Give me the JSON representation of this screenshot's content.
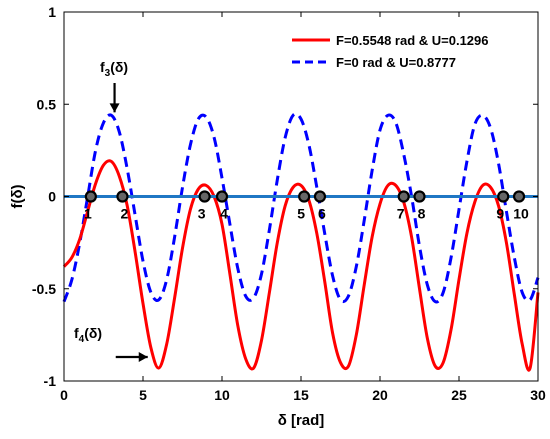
{
  "chart_data": {
    "type": "line",
    "xlabel": "δ [rad]",
    "ylabel": "f(δ)",
    "xlim": [
      0,
      30
    ],
    "ylim": [
      -1,
      1
    ],
    "xticks": [
      "0",
      "5",
      "10",
      "15",
      "20",
      "25",
      "30"
    ],
    "yticks": [
      "-1",
      "-0.5",
      "0",
      "0.5",
      "1"
    ],
    "grid": false,
    "legend_position": "top-right",
    "series": [
      {
        "name": "F=0.5548 rad & U=0.1296",
        "color": "#ff0000",
        "style": "solid",
        "x": [
          0,
          0.5,
          1.0,
          1.5,
          2.0,
          2.5,
          3.0,
          3.5,
          4.0,
          4.5,
          5.0,
          5.5,
          6.0,
          6.5,
          7.0,
          7.5,
          8.0,
          8.5,
          9.0,
          9.5,
          10.0,
          10.5,
          11.0,
          11.5,
          12.0,
          12.5,
          13.0,
          13.5,
          14.0,
          14.5,
          15.0,
          15.5,
          16.0,
          16.5,
          17.0,
          17.5,
          18.0,
          18.5,
          19.0,
          19.5,
          20.0,
          20.5,
          21.0,
          21.5,
          22.0,
          22.5,
          23.0,
          23.5,
          24.0,
          24.5,
          25.0,
          25.5,
          26.0,
          26.5,
          27.0,
          27.5,
          28.0,
          28.5,
          29.0,
          29.5,
          30.0
        ],
        "y": [
          -0.38,
          -0.33,
          -0.23,
          -0.08,
          0.07,
          0.17,
          0.19,
          0.11,
          -0.05,
          -0.3,
          -0.58,
          -0.82,
          -0.93,
          -0.8,
          -0.55,
          -0.28,
          -0.07,
          0.04,
          0.06,
          0.0,
          -0.15,
          -0.42,
          -0.7,
          -0.88,
          -0.93,
          -0.78,
          -0.52,
          -0.25,
          -0.05,
          0.05,
          0.06,
          -0.02,
          -0.2,
          -0.46,
          -0.74,
          -0.9,
          -0.92,
          -0.75,
          -0.48,
          -0.22,
          -0.04,
          0.06,
          0.06,
          -0.03,
          -0.22,
          -0.5,
          -0.77,
          -0.92,
          -0.9,
          -0.72,
          -0.45,
          -0.2,
          -0.03,
          0.06,
          0.05,
          -0.05,
          -0.25,
          -0.53,
          -0.8,
          -0.93,
          -0.52
        ]
      },
      {
        "name": "F=0 rad & U=0.8777",
        "color": "#0000ff",
        "style": "dashed",
        "x": [
          0,
          0.5,
          1.0,
          1.5,
          2.0,
          2.5,
          3.0,
          3.5,
          4.0,
          4.5,
          5.0,
          5.5,
          6.0,
          6.5,
          7.0,
          7.5,
          8.0,
          8.5,
          9.0,
          9.5,
          10.0,
          10.5,
          11.0,
          11.5,
          12.0,
          12.5,
          13.0,
          13.5,
          14.0,
          14.5,
          15.0,
          15.5,
          16.0,
          16.5,
          17.0,
          17.5,
          18.0,
          18.5,
          19.0,
          19.5,
          20.0,
          20.5,
          21.0,
          21.5,
          22.0,
          22.5,
          23.0,
          23.5,
          24.0,
          24.5,
          25.0,
          25.5,
          26.0,
          26.5,
          27.0,
          27.5,
          28.0,
          28.5,
          29.0,
          29.5,
          30.0
        ],
        "y": [
          -0.57,
          -0.45,
          -0.25,
          0.0,
          0.25,
          0.4,
          0.44,
          0.35,
          0.15,
          -0.1,
          -0.35,
          -0.52,
          -0.56,
          -0.45,
          -0.22,
          0.05,
          0.28,
          0.42,
          0.43,
          0.32,
          0.1,
          -0.15,
          -0.39,
          -0.54,
          -0.55,
          -0.42,
          -0.18,
          0.09,
          0.32,
          0.44,
          0.42,
          0.28,
          0.05,
          -0.2,
          -0.43,
          -0.56,
          -0.54,
          -0.38,
          -0.13,
          0.14,
          0.36,
          0.44,
          0.4,
          0.23,
          0.0,
          -0.27,
          -0.48,
          -0.57,
          -0.52,
          -0.33,
          -0.07,
          0.19,
          0.39,
          0.44,
          0.37,
          0.18,
          -0.08,
          -0.33,
          -0.52,
          -0.56,
          -0.44
        ]
      },
      {
        "name": "",
        "color": "#1f77c4",
        "style": "solid",
        "x": [
          0,
          30
        ],
        "y": [
          0,
          0
        ]
      }
    ],
    "marked_points": [
      {
        "label": "1",
        "x": 1.7,
        "y": 0
      },
      {
        "label": "2",
        "x": 3.7,
        "y": 0
      },
      {
        "label": "3",
        "x": 8.9,
        "y": 0
      },
      {
        "label": "4",
        "x": 10.0,
        "y": 0
      },
      {
        "label": "5",
        "x": 15.2,
        "y": 0
      },
      {
        "label": "6",
        "x": 16.2,
        "y": 0
      },
      {
        "label": "7",
        "x": 21.5,
        "y": 0
      },
      {
        "label": "8",
        "x": 22.5,
        "y": 0
      },
      {
        "label": "9",
        "x": 27.8,
        "y": 0
      },
      {
        "label": "10",
        "x": 28.8,
        "y": 0
      }
    ],
    "annotations": [
      {
        "base": "f",
        "sub": "3",
        "suffix": "(δ)",
        "points_to_x": 3.2,
        "points_to_y": 0.44
      },
      {
        "base": "f",
        "sub": "4",
        "suffix": "(δ)",
        "points_to_x": 5.3,
        "points_to_y": -0.87
      }
    ]
  }
}
